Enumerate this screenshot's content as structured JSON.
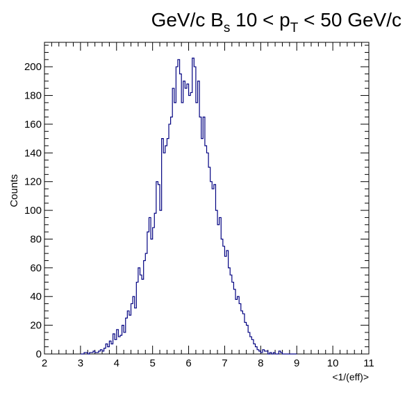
{
  "chart_data": {
    "type": "histogram",
    "title": {
      "prefix": "GeV/c B",
      "sub1": "s",
      "middle": " 10 < p",
      "sub2": "T",
      "suffix": " < 50 GeV/c"
    },
    "xlabel": "<1/(eff)>",
    "ylabel": "Counts",
    "xlim": [
      2,
      11
    ],
    "ylim": [
      0,
      217
    ],
    "xticks": [
      2,
      3,
      4,
      5,
      6,
      7,
      8,
      9,
      10,
      11
    ],
    "yticks": [
      0,
      20,
      40,
      60,
      80,
      100,
      120,
      140,
      160,
      180,
      200
    ],
    "grid": false,
    "line_color": "#000080",
    "bin_width": 0.05,
    "x_start": 3.0,
    "values": [
      0,
      0,
      1,
      1,
      0,
      1,
      1,
      2,
      1,
      1,
      2,
      3,
      2,
      4,
      7,
      5,
      9,
      7,
      14,
      10,
      17,
      12,
      13,
      20,
      15,
      25,
      30,
      27,
      35,
      40,
      32,
      50,
      60,
      55,
      52,
      65,
      70,
      85,
      95,
      80,
      88,
      98,
      120,
      118,
      100,
      150,
      140,
      145,
      150,
      160,
      165,
      185,
      175,
      200,
      205,
      195,
      175,
      190,
      185,
      188,
      180,
      182,
      206,
      200,
      175,
      190,
      165,
      150,
      165,
      145,
      140,
      130,
      120,
      115,
      118,
      100,
      90,
      95,
      80,
      75,
      68,
      72,
      60,
      55,
      50,
      45,
      38,
      40,
      35,
      30,
      28,
      22,
      20,
      15,
      12,
      10,
      7,
      5,
      3,
      2,
      1,
      3,
      2,
      2,
      0,
      1,
      0,
      1,
      0,
      0,
      2,
      1,
      0,
      0,
      0,
      0,
      0,
      0,
      0,
      0
    ]
  }
}
